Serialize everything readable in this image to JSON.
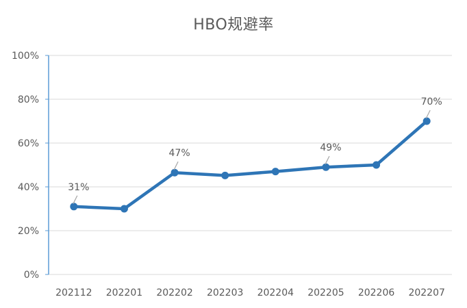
{
  "chart_data": {
    "type": "line",
    "title": "HBO规避率",
    "xlabel": "",
    "ylabel": "",
    "categories": [
      "202112",
      "202201",
      "202202",
      "202203",
      "202204",
      "202205",
      "202206",
      "202207"
    ],
    "series": [
      {
        "values": [
          0.31,
          0.3,
          0.465,
          0.452,
          0.47,
          0.49,
          0.5,
          0.7
        ],
        "color": "#2E75B6"
      }
    ],
    "ylim": [
      0,
      1
    ],
    "yticks": [
      0,
      0.2,
      0.4,
      0.6,
      0.8,
      1.0
    ],
    "ytick_labels": [
      "0%",
      "20%",
      "40%",
      "60%",
      "80%",
      "100%"
    ],
    "data_labels": [
      {
        "index": 0,
        "text": "31%"
      },
      {
        "index": 2,
        "text": "47%"
      },
      {
        "index": 5,
        "text": "49%"
      },
      {
        "index": 7,
        "text": "70%"
      }
    ],
    "grid": true,
    "legend": "none",
    "colors": {
      "line": "#2E75B6",
      "grid": "#D9D9D9",
      "axis": "#5B9BD5",
      "text": "#595959",
      "leader": "#A6A6A6"
    }
  }
}
